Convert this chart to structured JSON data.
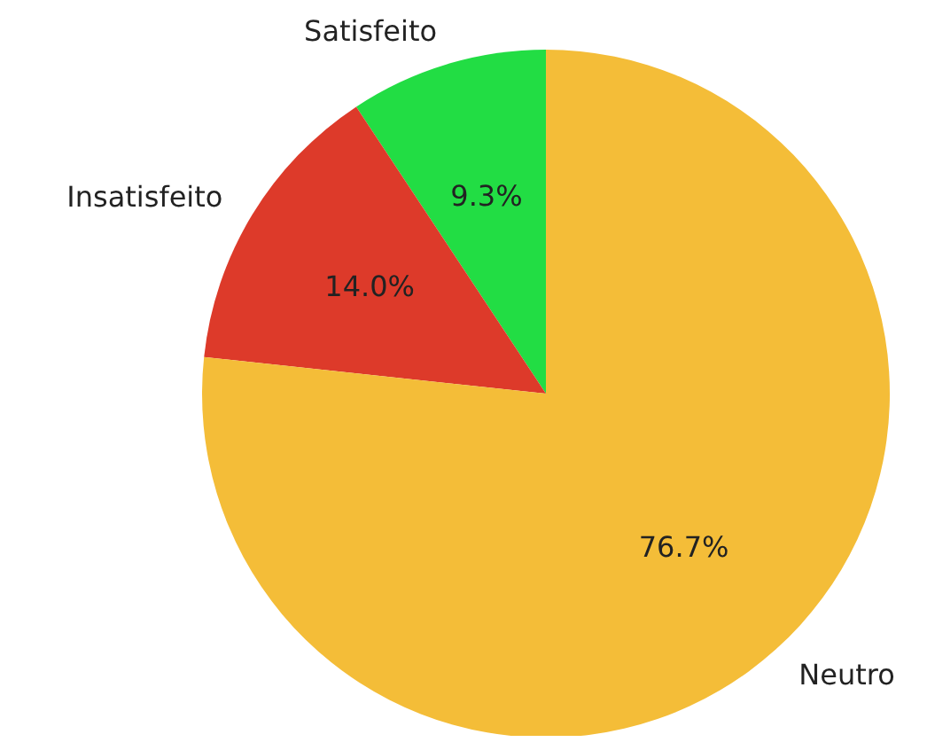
{
  "chart_data": {
    "type": "pie",
    "categories": [
      "Satisfeito",
      "Insatisfeito",
      "Neutro"
    ],
    "values": [
      9.3,
      14.0,
      76.7
    ],
    "colors": [
      "#22dd44",
      "#dd3a2a",
      "#f4bd38"
    ],
    "value_labels": [
      "9.3%",
      "14.0%",
      "76.7%"
    ]
  }
}
